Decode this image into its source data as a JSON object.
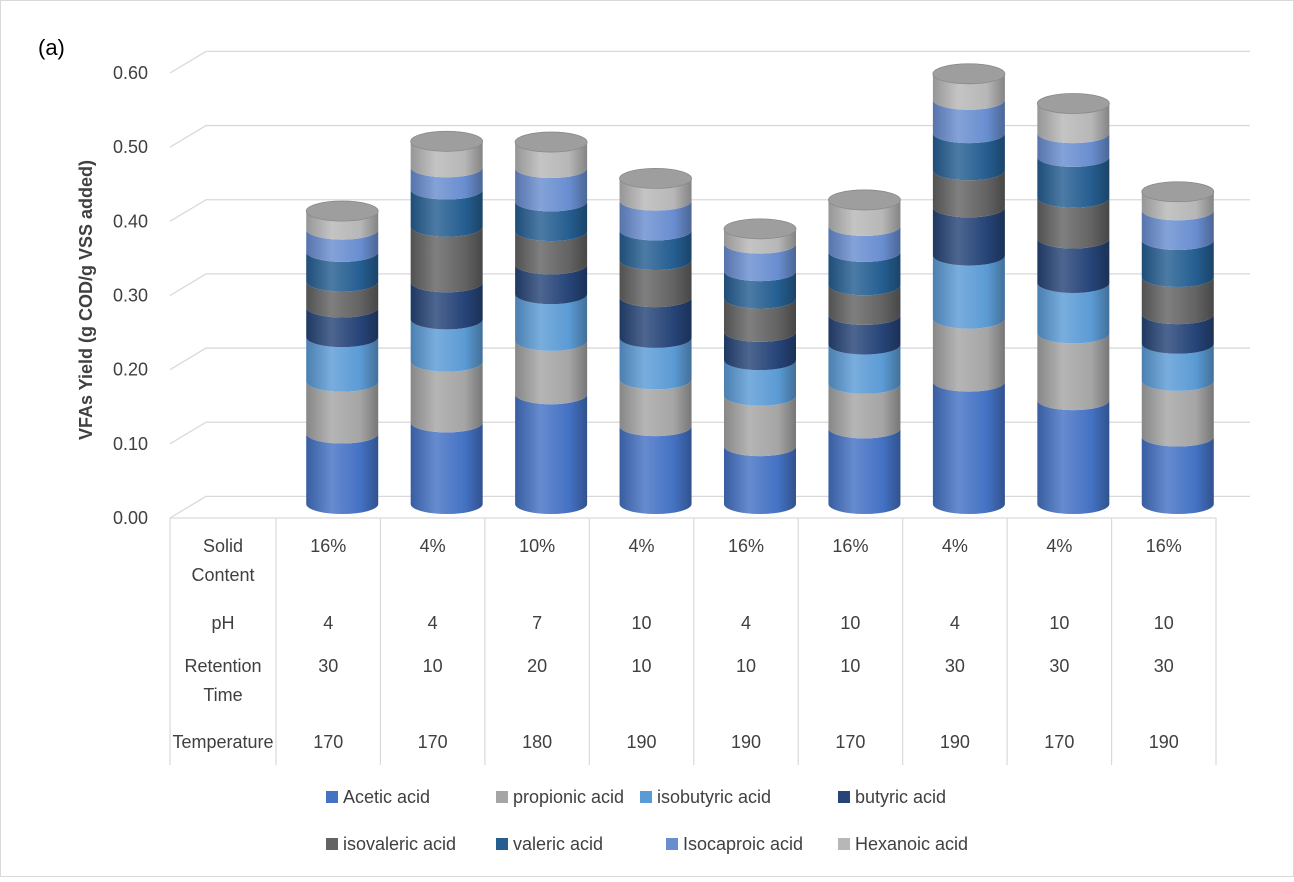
{
  "chart_data": {
    "type": "bar",
    "stacked": true,
    "panel_label": "(a)",
    "ylabel": "VFAs Yield (g COD/g VSS added)",
    "ylim": [
      0,
      0.6
    ],
    "yticks": [
      "0.00",
      "0.10",
      "0.20",
      "0.30",
      "0.40",
      "0.50",
      "0.60"
    ],
    "grid": true,
    "legend_position": "bottom",
    "table": {
      "rows": [
        {
          "label": "Solid Content",
          "values": [
            "16%",
            "4%",
            "10%",
            "4%",
            "16%",
            "16%",
            "4%",
            "4%",
            "16%"
          ]
        },
        {
          "label": "pH",
          "values": [
            "4",
            "4",
            "7",
            "10",
            "4",
            "10",
            "4",
            "10",
            "10"
          ]
        },
        {
          "label": "Retention Time",
          "values": [
            "30",
            "10",
            "20",
            "10",
            "10",
            "10",
            "30",
            "30",
            "30"
          ]
        },
        {
          "label": "Temperature",
          "values": [
            "170",
            "170",
            "180",
            "190",
            "190",
            "170",
            "190",
            "170",
            "190"
          ]
        }
      ]
    },
    "series": [
      {
        "name": "Acetic acid",
        "color": "#4472C4",
        "values": [
          0.095,
          0.11,
          0.148,
          0.105,
          0.078,
          0.102,
          0.165,
          0.14,
          0.091
        ]
      },
      {
        "name": "propionic acid",
        "color": "#A5A5A5",
        "values": [
          0.07,
          0.082,
          0.072,
          0.063,
          0.068,
          0.06,
          0.085,
          0.09,
          0.075
        ]
      },
      {
        "name": "isobutyric acid",
        "color": "#5B9BD5",
        "values": [
          0.06,
          0.057,
          0.063,
          0.056,
          0.048,
          0.053,
          0.085,
          0.068,
          0.05
        ]
      },
      {
        "name": "butyric acid",
        "color": "#264478",
        "values": [
          0.04,
          0.05,
          0.04,
          0.055,
          0.038,
          0.04,
          0.065,
          0.06,
          0.04
        ]
      },
      {
        "name": "isovaleric acid",
        "color": "#636363",
        "values": [
          0.035,
          0.075,
          0.045,
          0.05,
          0.045,
          0.04,
          0.05,
          0.055,
          0.05
        ]
      },
      {
        "name": "valeric acid",
        "color": "#255E91",
        "values": [
          0.04,
          0.05,
          0.04,
          0.04,
          0.037,
          0.045,
          0.05,
          0.055,
          0.05
        ]
      },
      {
        "name": "Isocaproic acid",
        "color": "#698ED0",
        "values": [
          0.03,
          0.03,
          0.045,
          0.04,
          0.037,
          0.035,
          0.045,
          0.032,
          0.04
        ]
      },
      {
        "name": "Hexanoic acid",
        "color": "#B7B7B7",
        "values": [
          0.025,
          0.035,
          0.035,
          0.03,
          0.02,
          0.035,
          0.035,
          0.04,
          0.025
        ]
      }
    ]
  }
}
